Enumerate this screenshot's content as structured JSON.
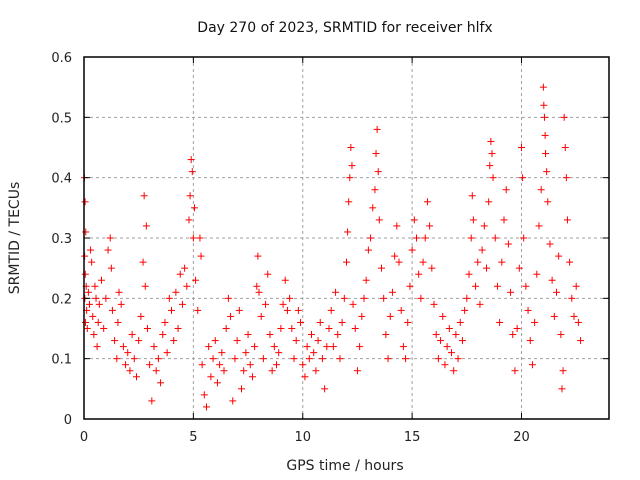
{
  "chart_data": {
    "type": "scatter",
    "title": "Day 270 of 2023, SRMTID for receiver hlfx",
    "xlabel": "GPS time / hours",
    "ylabel": "SRMTID / TECUs",
    "xlim": [
      0,
      24
    ],
    "ylim": [
      0,
      0.6
    ],
    "xticks": [
      0,
      5,
      10,
      15,
      20
    ],
    "xtick_labels": [
      "0",
      "5",
      "10",
      "15",
      "20"
    ],
    "yticks": [
      0,
      0.1,
      0.2,
      0.3,
      0.4,
      0.5,
      0.6
    ],
    "ytick_labels": [
      "0",
      "0.1",
      "0.2",
      "0.3",
      "0.4",
      "0.5",
      "0.6"
    ],
    "grid": true,
    "legend": "none",
    "marker": "plus",
    "color": "#ff0000",
    "series": [
      {
        "name": "SRMTID",
        "points": [
          [
            0.02,
            0.4
          ],
          [
            0.05,
            0.36
          ],
          [
            0.08,
            0.31
          ],
          [
            0.03,
            0.27
          ],
          [
            0.06,
            0.24
          ],
          [
            0.1,
            0.22
          ],
          [
            0.04,
            0.2
          ],
          [
            0.12,
            0.18
          ],
          [
            0.07,
            0.16
          ],
          [
            0.15,
            0.15
          ],
          [
            0.2,
            0.21
          ],
          [
            0.25,
            0.19
          ],
          [
            0.3,
            0.28
          ],
          [
            0.35,
            0.26
          ],
          [
            0.4,
            0.17
          ],
          [
            0.45,
            0.14
          ],
          [
            0.5,
            0.22
          ],
          [
            0.55,
            0.2
          ],
          [
            0.6,
            0.12
          ],
          [
            0.65,
            0.16
          ],
          [
            0.7,
            0.19
          ],
          [
            0.8,
            0.23
          ],
          [
            0.9,
            0.15
          ],
          [
            1.0,
            0.2
          ],
          [
            1.1,
            0.28
          ],
          [
            1.2,
            0.3
          ],
          [
            1.25,
            0.25
          ],
          [
            1.3,
            0.18
          ],
          [
            1.4,
            0.13
          ],
          [
            1.5,
            0.1
          ],
          [
            1.55,
            0.16
          ],
          [
            1.6,
            0.21
          ],
          [
            1.7,
            0.19
          ],
          [
            1.8,
            0.12
          ],
          [
            1.9,
            0.09
          ],
          [
            2.0,
            0.11
          ],
          [
            2.1,
            0.08
          ],
          [
            2.2,
            0.14
          ],
          [
            2.3,
            0.1
          ],
          [
            2.4,
            0.07
          ],
          [
            2.5,
            0.13
          ],
          [
            2.6,
            0.17
          ],
          [
            2.7,
            0.26
          ],
          [
            2.75,
            0.37
          ],
          [
            2.8,
            0.22
          ],
          [
            2.85,
            0.32
          ],
          [
            2.9,
            0.15
          ],
          [
            3.0,
            0.09
          ],
          [
            3.1,
            0.03
          ],
          [
            3.2,
            0.12
          ],
          [
            3.3,
            0.08
          ],
          [
            3.4,
            0.1
          ],
          [
            3.5,
            0.06
          ],
          [
            3.6,
            0.14
          ],
          [
            3.7,
            0.16
          ],
          [
            3.8,
            0.11
          ],
          [
            3.9,
            0.2
          ],
          [
            4.0,
            0.18
          ],
          [
            4.1,
            0.13
          ],
          [
            4.2,
            0.21
          ],
          [
            4.3,
            0.15
          ],
          [
            4.4,
            0.24
          ],
          [
            4.5,
            0.19
          ],
          [
            4.6,
            0.25
          ],
          [
            4.7,
            0.22
          ],
          [
            4.8,
            0.33
          ],
          [
            4.85,
            0.37
          ],
          [
            4.9,
            0.43
          ],
          [
            4.95,
            0.41
          ],
          [
            5.0,
            0.3
          ],
          [
            5.05,
            0.35
          ],
          [
            5.1,
            0.23
          ],
          [
            5.2,
            0.18
          ],
          [
            5.3,
            0.3
          ],
          [
            5.35,
            0.27
          ],
          [
            5.4,
            0.09
          ],
          [
            5.5,
            0.04
          ],
          [
            5.6,
            0.02
          ],
          [
            5.7,
            0.12
          ],
          [
            5.8,
            0.07
          ],
          [
            5.9,
            0.1
          ],
          [
            6.0,
            0.13
          ],
          [
            6.1,
            0.06
          ],
          [
            6.2,
            0.09
          ],
          [
            6.3,
            0.11
          ],
          [
            6.4,
            0.08
          ],
          [
            6.5,
            0.15
          ],
          [
            6.6,
            0.2
          ],
          [
            6.7,
            0.17
          ],
          [
            6.8,
            0.03
          ],
          [
            6.9,
            0.1
          ],
          [
            7.0,
            0.13
          ],
          [
            7.1,
            0.18
          ],
          [
            7.2,
            0.05
          ],
          [
            7.3,
            0.08
          ],
          [
            7.4,
            0.11
          ],
          [
            7.5,
            0.14
          ],
          [
            7.6,
            0.09
          ],
          [
            7.7,
            0.07
          ],
          [
            7.8,
            0.12
          ],
          [
            7.9,
            0.22
          ],
          [
            7.95,
            0.27
          ],
          [
            8.0,
            0.21
          ],
          [
            8.1,
            0.17
          ],
          [
            8.2,
            0.1
          ],
          [
            8.3,
            0.19
          ],
          [
            8.4,
            0.24
          ],
          [
            8.5,
            0.14
          ],
          [
            8.6,
            0.08
          ],
          [
            8.7,
            0.12
          ],
          [
            8.8,
            0.09
          ],
          [
            8.9,
            0.11
          ],
          [
            9.0,
            0.15
          ],
          [
            9.1,
            0.19
          ],
          [
            9.2,
            0.23
          ],
          [
            9.3,
            0.18
          ],
          [
            9.4,
            0.2
          ],
          [
            9.5,
            0.15
          ],
          [
            9.6,
            0.1
          ],
          [
            9.7,
            0.13
          ],
          [
            9.8,
            0.18
          ],
          [
            9.9,
            0.16
          ],
          [
            10.0,
            0.09
          ],
          [
            10.1,
            0.07
          ],
          [
            10.2,
            0.12
          ],
          [
            10.3,
            0.1
          ],
          [
            10.4,
            0.14
          ],
          [
            10.5,
            0.11
          ],
          [
            10.6,
            0.08
          ],
          [
            10.7,
            0.13
          ],
          [
            10.8,
            0.16
          ],
          [
            10.9,
            0.1
          ],
          [
            11.0,
            0.05
          ],
          [
            11.1,
            0.12
          ],
          [
            11.2,
            0.15
          ],
          [
            11.3,
            0.18
          ],
          [
            11.4,
            0.12
          ],
          [
            11.5,
            0.21
          ],
          [
            11.6,
            0.14
          ],
          [
            11.7,
            0.1
          ],
          [
            11.8,
            0.16
          ],
          [
            11.9,
            0.2
          ],
          [
            12.0,
            0.26
          ],
          [
            12.05,
            0.31
          ],
          [
            12.1,
            0.36
          ],
          [
            12.15,
            0.4
          ],
          [
            12.2,
            0.45
          ],
          [
            12.25,
            0.42
          ],
          [
            12.3,
            0.19
          ],
          [
            12.4,
            0.15
          ],
          [
            12.5,
            0.08
          ],
          [
            12.6,
            0.12
          ],
          [
            12.7,
            0.17
          ],
          [
            12.8,
            0.2
          ],
          [
            12.9,
            0.23
          ],
          [
            13.0,
            0.28
          ],
          [
            13.1,
            0.3
          ],
          [
            13.2,
            0.35
          ],
          [
            13.3,
            0.38
          ],
          [
            13.35,
            0.44
          ],
          [
            13.4,
            0.48
          ],
          [
            13.45,
            0.41
          ],
          [
            13.5,
            0.33
          ],
          [
            13.6,
            0.25
          ],
          [
            13.7,
            0.2
          ],
          [
            13.8,
            0.14
          ],
          [
            13.9,
            0.1
          ],
          [
            14.0,
            0.17
          ],
          [
            14.1,
            0.21
          ],
          [
            14.2,
            0.27
          ],
          [
            14.3,
            0.32
          ],
          [
            14.4,
            0.26
          ],
          [
            14.5,
            0.18
          ],
          [
            14.6,
            0.12
          ],
          [
            14.7,
            0.1
          ],
          [
            14.8,
            0.16
          ],
          [
            14.9,
            0.22
          ],
          [
            15.0,
            0.28
          ],
          [
            15.1,
            0.33
          ],
          [
            15.2,
            0.3
          ],
          [
            15.3,
            0.24
          ],
          [
            15.4,
            0.2
          ],
          [
            15.5,
            0.26
          ],
          [
            15.6,
            0.3
          ],
          [
            15.7,
            0.36
          ],
          [
            15.8,
            0.32
          ],
          [
            15.9,
            0.25
          ],
          [
            16.0,
            0.19
          ],
          [
            16.1,
            0.14
          ],
          [
            16.2,
            0.1
          ],
          [
            16.3,
            0.13
          ],
          [
            16.4,
            0.17
          ],
          [
            16.5,
            0.09
          ],
          [
            16.6,
            0.12
          ],
          [
            16.7,
            0.15
          ],
          [
            16.8,
            0.11
          ],
          [
            16.9,
            0.08
          ],
          [
            17.0,
            0.14
          ],
          [
            17.1,
            0.1
          ],
          [
            17.2,
            0.16
          ],
          [
            17.3,
            0.13
          ],
          [
            17.4,
            0.18
          ],
          [
            17.5,
            0.2
          ],
          [
            17.6,
            0.24
          ],
          [
            17.7,
            0.3
          ],
          [
            17.75,
            0.37
          ],
          [
            17.8,
            0.33
          ],
          [
            17.9,
            0.22
          ],
          [
            18.0,
            0.26
          ],
          [
            18.1,
            0.19
          ],
          [
            18.2,
            0.28
          ],
          [
            18.3,
            0.32
          ],
          [
            18.4,
            0.25
          ],
          [
            18.5,
            0.36
          ],
          [
            18.55,
            0.42
          ],
          [
            18.6,
            0.46
          ],
          [
            18.65,
            0.44
          ],
          [
            18.7,
            0.4
          ],
          [
            18.8,
            0.3
          ],
          [
            18.9,
            0.22
          ],
          [
            19.0,
            0.16
          ],
          [
            19.1,
            0.26
          ],
          [
            19.2,
            0.33
          ],
          [
            19.3,
            0.38
          ],
          [
            19.4,
            0.29
          ],
          [
            19.5,
            0.21
          ],
          [
            19.6,
            0.14
          ],
          [
            19.7,
            0.08
          ],
          [
            19.8,
            0.15
          ],
          [
            19.9,
            0.25
          ],
          [
            20.0,
            0.45
          ],
          [
            20.05,
            0.4
          ],
          [
            20.1,
            0.3
          ],
          [
            20.2,
            0.22
          ],
          [
            20.3,
            0.18
          ],
          [
            20.4,
            0.13
          ],
          [
            20.5,
            0.09
          ],
          [
            20.6,
            0.16
          ],
          [
            20.7,
            0.24
          ],
          [
            20.8,
            0.32
          ],
          [
            20.9,
            0.38
          ],
          [
            21.0,
            0.55
          ],
          [
            21.02,
            0.52
          ],
          [
            21.05,
            0.5
          ],
          [
            21.08,
            0.47
          ],
          [
            21.1,
            0.44
          ],
          [
            21.15,
            0.41
          ],
          [
            21.2,
            0.36
          ],
          [
            21.3,
            0.29
          ],
          [
            21.4,
            0.23
          ],
          [
            21.5,
            0.17
          ],
          [
            21.6,
            0.21
          ],
          [
            21.7,
            0.27
          ],
          [
            21.8,
            0.14
          ],
          [
            21.85,
            0.05
          ],
          [
            21.9,
            0.08
          ],
          [
            21.95,
            0.5
          ],
          [
            22.0,
            0.45
          ],
          [
            22.05,
            0.4
          ],
          [
            22.1,
            0.33
          ],
          [
            22.2,
            0.26
          ],
          [
            22.3,
            0.2
          ],
          [
            22.4,
            0.17
          ],
          [
            22.5,
            0.22
          ],
          [
            22.6,
            0.16
          ],
          [
            22.7,
            0.13
          ]
        ]
      }
    ]
  }
}
